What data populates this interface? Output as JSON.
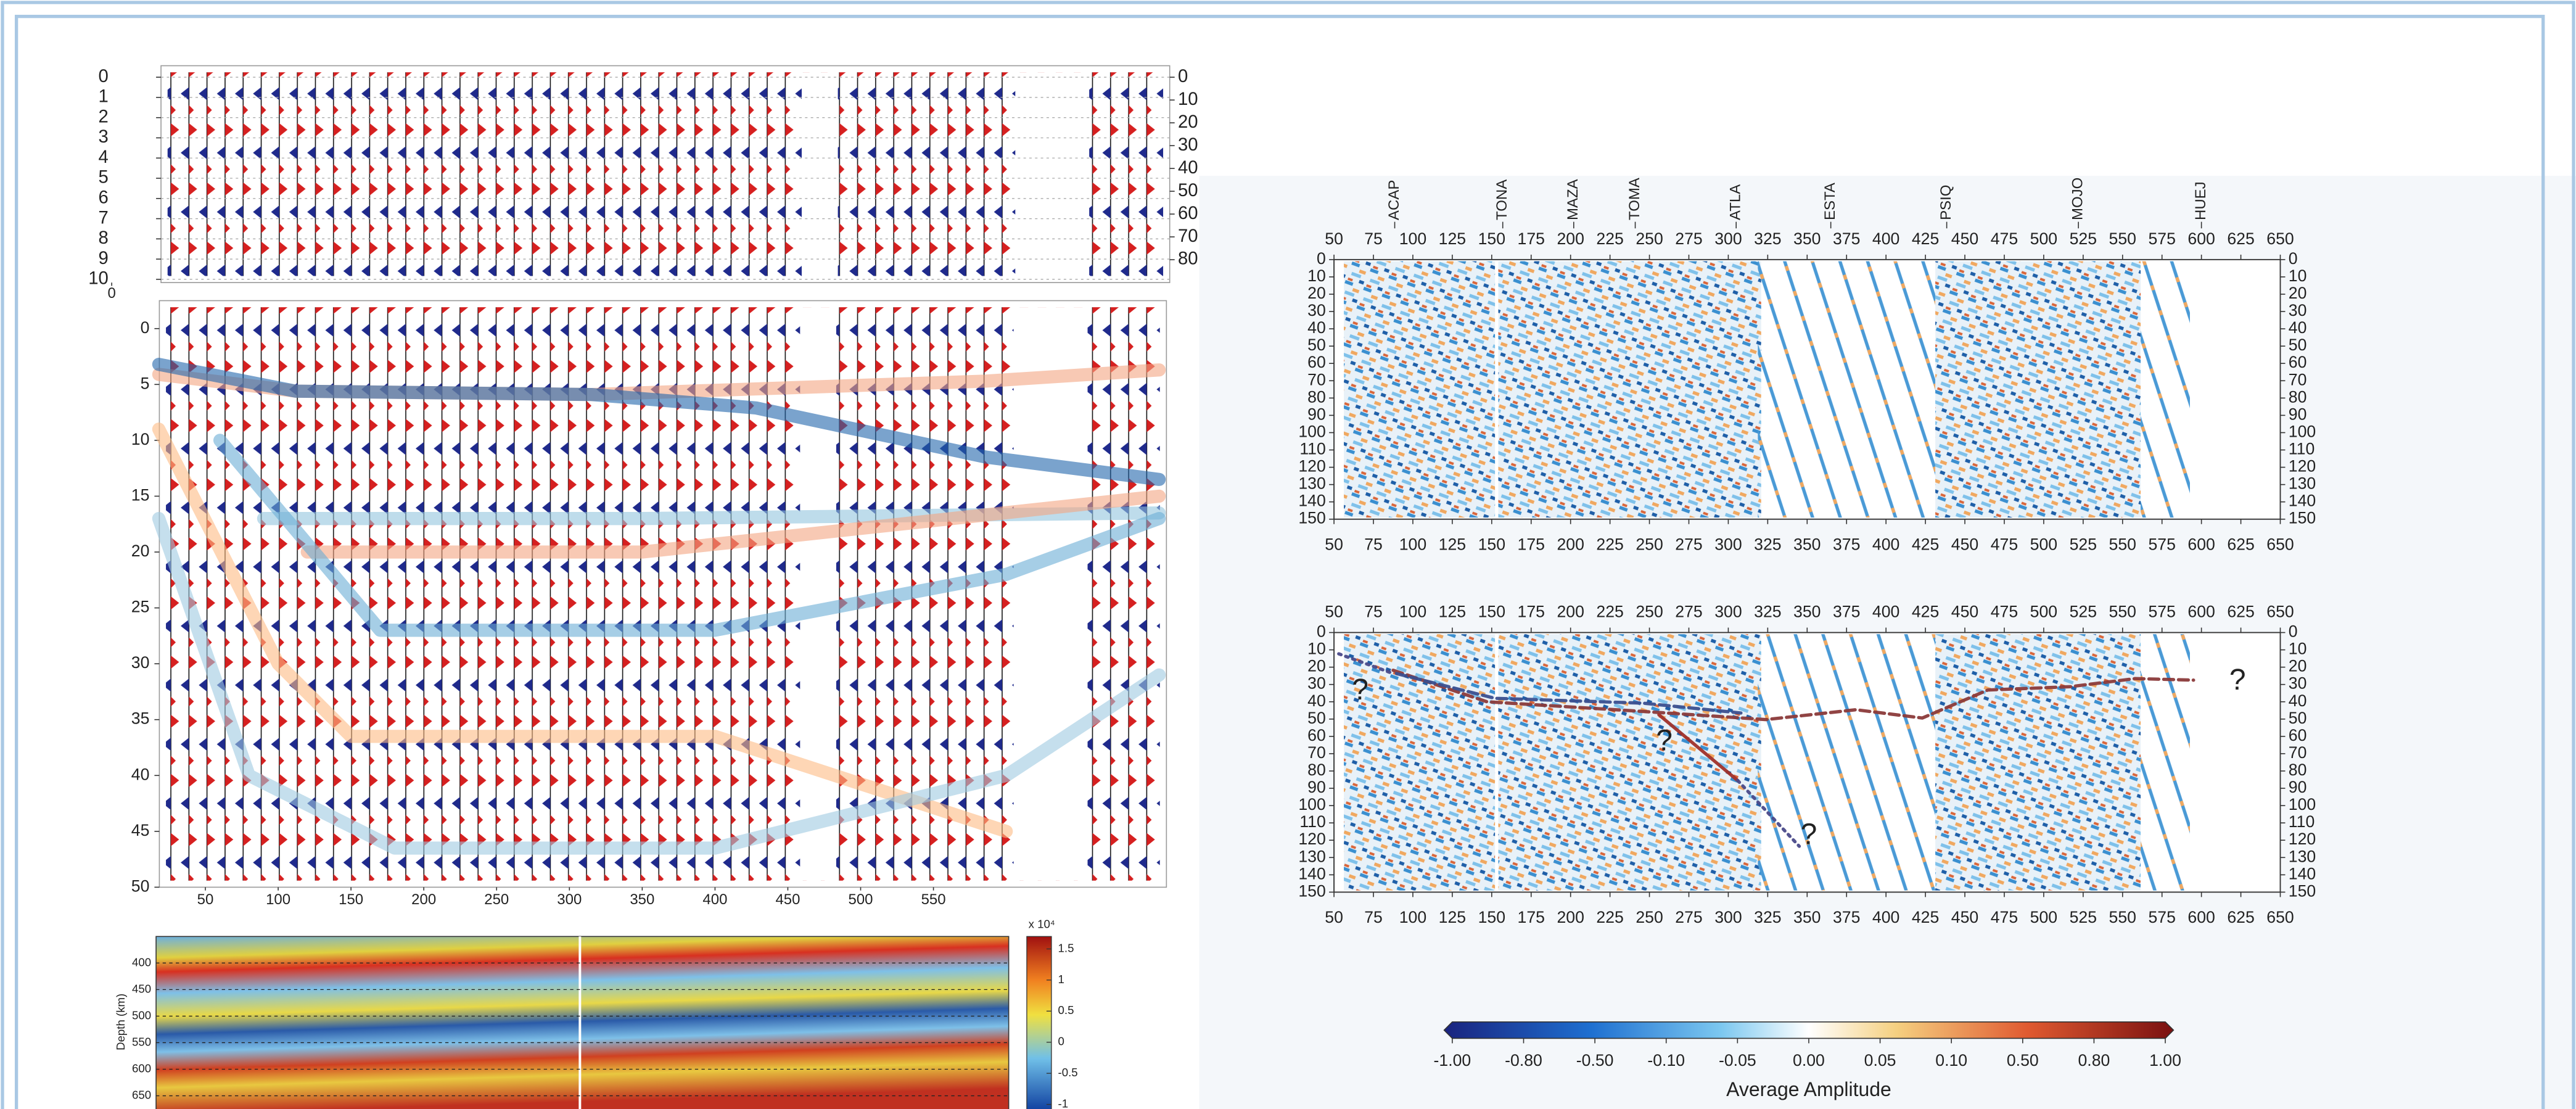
{
  "chart_data": [
    {
      "type": "wiggle",
      "xlim": [
        0,
        100
      ],
      "xticks": [
        0
      ],
      "ylim": [
        0,
        10
      ],
      "yticks": [
        0,
        1,
        2,
        3,
        4,
        5,
        6,
        7,
        8,
        9,
        10
      ],
      "y2lim": [
        0,
        88.6
      ],
      "y2ticks": [
        0,
        10,
        20,
        30,
        40,
        50,
        60,
        70,
        80
      ],
      "grid": true
    },
    {
      "type": "wiggle",
      "xlim": [
        18.4,
        710
      ],
      "xticks": [
        50,
        100,
        150,
        200,
        250,
        300,
        350,
        400,
        450,
        500,
        550
      ],
      "ylim": [
        -2.5,
        50
      ],
      "yticks": [
        0,
        5,
        10,
        15,
        20,
        25,
        30,
        35,
        40,
        45,
        50
      ],
      "grid": false,
      "series": [
        {
          "color": "#f4a582",
          "x": [
            18,
            112,
            315,
            586,
            705
          ],
          "values": [
            4.1,
            5.6,
            5.9,
            4.7,
            3.7
          ]
        },
        {
          "color": "#2166ac",
          "x": [
            18,
            112,
            315,
            428,
            586,
            705
          ],
          "values": [
            3.2,
            5.6,
            5.9,
            7.1,
            11.5,
            13.5
          ]
        },
        {
          "color": "#92c5de",
          "x": [
            90,
            350,
            705
          ],
          "values": [
            17,
            17,
            16.5
          ]
        },
        {
          "color": "#f4a582",
          "x": [
            120,
            350,
            705
          ],
          "values": [
            20,
            20,
            15
          ]
        },
        {
          "color": "#6baed6",
          "x": [
            60,
            170,
            400,
            600,
            705
          ],
          "values": [
            10,
            27,
            27,
            22,
            17
          ]
        },
        {
          "color": "#fdbb84",
          "x": [
            18,
            100,
            150,
            400,
            600
          ],
          "values": [
            9,
            30,
            36.5,
            36.5,
            45
          ]
        },
        {
          "color": "#9ecae1",
          "x": [
            18,
            80,
            180,
            400,
            600,
            705
          ],
          "values": [
            17,
            40,
            46.5,
            46.5,
            40,
            31
          ]
        }
      ]
    },
    {
      "type": "heatmap",
      "ylabel": "Depth (km)",
      "ylim": [
        350,
        678
      ],
      "yticks": [
        400,
        450,
        500,
        550,
        600,
        650
      ],
      "clim": [
        -1.1,
        1.7
      ],
      "cticks": [
        1.5,
        1,
        0.5,
        0,
        -0.5,
        -1
      ],
      "clabel": "x 10⁴"
    },
    {
      "type": "section",
      "xlim": [
        50,
        650
      ],
      "xticks": [
        50,
        75,
        100,
        125,
        150,
        175,
        200,
        225,
        250,
        275,
        300,
        325,
        350,
        375,
        400,
        425,
        450,
        475,
        500,
        525,
        550,
        575,
        600,
        625,
        650
      ],
      "ylim": [
        0,
        150
      ],
      "yticks": [
        0,
        10,
        20,
        30,
        40,
        50,
        60,
        70,
        80,
        90,
        100,
        110,
        120,
        130,
        140,
        150
      ],
      "stations": [
        "ACAP",
        "TONA",
        "MAZA",
        "TOMA",
        "ATLA",
        "ESTA",
        "PSIQ",
        "MOJO",
        "HUEJ"
      ],
      "station_x": [
        88.5,
        157,
        202,
        241,
        305,
        365,
        438.5,
        522,
        600
      ]
    },
    {
      "type": "section",
      "xlim": [
        50,
        650
      ],
      "xticks": [
        50,
        75,
        100,
        125,
        150,
        175,
        200,
        225,
        250,
        275,
        300,
        325,
        350,
        375,
        400,
        425,
        450,
        475,
        500,
        525,
        550,
        575,
        600,
        625,
        650
      ],
      "ylim": [
        0,
        150
      ],
      "yticks": [
        0,
        10,
        20,
        30,
        40,
        50,
        60,
        70,
        80,
        90,
        100,
        110,
        120,
        130,
        140,
        150
      ],
      "series": [
        {
          "color": "#8b3a3a",
          "dash": "dashed",
          "x": [
            87.5,
            147,
            246,
            324,
            381,
            423,
            464.6,
            516.7,
            558,
            595
          ],
          "values": [
            21.8,
            40,
            45.6,
            50.3,
            44.6,
            49.4,
            33.2,
            31.3,
            26.6,
            27.5
          ]
        },
        {
          "color": "#3b4f8f",
          "dash": "dashed",
          "x": [
            89.6,
            152,
            246,
            308
          ],
          "values": [
            23.7,
            38,
            40.8,
            46.5
          ]
        },
        {
          "color": "#a0302a",
          "dash": "solid",
          "x": [
            256,
            306
          ],
          "values": [
            47.5,
            85.5
          ]
        },
        {
          "color": "#4a4a8a",
          "dash": "dotted",
          "x": [
            53,
            87.5
          ],
          "values": [
            12.3,
            23.7
          ]
        },
        {
          "color": "#4a4a8a",
          "dash": "dotted",
          "x": [
            306,
            345
          ],
          "values": [
            85.5,
            123.5
          ]
        }
      ],
      "annotations": [
        "?",
        "?",
        "?",
        "?"
      ]
    },
    {
      "type": "colorbar",
      "ticks": [
        {
          "value": -1,
          "label": "-1.00"
        },
        {
          "value": -0.8,
          "label": "-0.80"
        },
        {
          "value": -0.5,
          "label": "-0.50"
        },
        {
          "value": -0.1,
          "label": "-0.10"
        },
        {
          "value": -0.05,
          "label": "-0.05"
        },
        {
          "value": 0,
          "label": "0.00"
        },
        {
          "value": 0.05,
          "label": "0.05"
        },
        {
          "value": 0.1,
          "label": "0.10"
        },
        {
          "value": 0.5,
          "label": "0.50"
        },
        {
          "value": 0.8,
          "label": "0.80"
        },
        {
          "value": 1,
          "label": "1.00"
        }
      ],
      "label": "Average Amplitude"
    }
  ]
}
